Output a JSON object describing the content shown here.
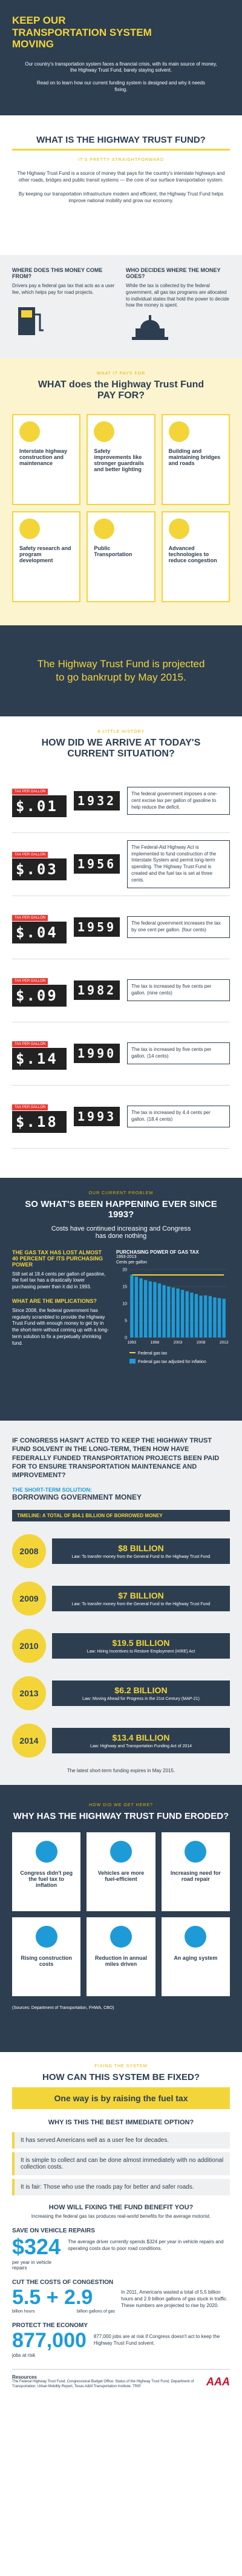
{
  "header": {
    "title": "KEEP OUR TRANSPORTATION SYSTEM MOVING",
    "paragraphs": [
      "Our country's transportation system faces a financial crisis, with its main source of money, the Highway Trust Fund, barely staying solvent.",
      "Read on to learn how our current funding system is designed and why it needs fixing."
    ]
  },
  "what_is": {
    "title": "WHAT IS THE HIGHWAY TRUST FUND?",
    "subtitle": "IT'S PRETTY STRAIGHTFORWARD",
    "paragraphs": [
      "The Highway Trust Fund is a source of money that pays for the country's interstate highways and other roads, bridges and public transit systems — the core of our surface transportation system.",
      "By keeping our transportation infrastructure modern and efficient, the Highway Trust Fund helps improve national mobility and grow our economy."
    ]
  },
  "where_who": [
    {
      "title": "WHERE DOES THIS MONEY COME FROM?",
      "text": "Drivers pay a federal gas tax that acts as a user fee, which helps pay for road projects."
    },
    {
      "title": "WHO DECIDES WHERE THE MONEY GOES?",
      "text": "While the tax is collected by the federal government, all gas tax programs are allocated to individual states that hold the power to decide how the money is spent."
    }
  ],
  "pay_for": {
    "kicker": "WHAT IT PAYS FOR",
    "title": "WHAT does the Highway Trust Fund PAY FOR?",
    "items": [
      "Interstate highway construction and maintenance",
      "Safety improvements like stronger guardrails and better lighting",
      "Building and maintaining bridges and roads",
      "Safety research and program development",
      "Public Transportation",
      "Advanced technologies to reduce congestion"
    ]
  },
  "banner": "The Highway Trust Fund is projected to go bankrupt by May 2015.",
  "history": {
    "kicker": "A LITTLE HISTORY",
    "title": "HOW DID WE ARRIVE AT TODAY'S CURRENT SITUATION?",
    "entries": [
      {
        "label": "TAX PER GALLON",
        "tax": "$.01",
        "year": "1932",
        "text": "The federal government imposes a one-cent excise tax per gallon of gasoline to help reduce the deficit."
      },
      {
        "label": "TAX PER GALLON",
        "tax": "$.03",
        "year": "1956",
        "text": "The Federal-Aid Highway Act is implemented to fund construction of the Interstate System and permit long-term spending. The Highway Trust Fund is created and the fuel tax is set at three cents."
      },
      {
        "label": "TAX PER GALLON",
        "tax": "$.04",
        "year": "1959",
        "text": "The federal government increases the tax by one cent per gallon. (four cents)"
      },
      {
        "label": "TAX PER GALLON",
        "tax": "$.09",
        "year": "1982",
        "text": "The tax is increased by five cents per gallon. (nine cents)"
      },
      {
        "label": "TAX PER GALLON",
        "tax": "$.14",
        "year": "1990",
        "text": "The tax is increased by five cents per gallon. (14 cents)"
      },
      {
        "label": "TAX PER GALLON",
        "tax": "$.18",
        "year": "1993",
        "text": "The tax is increased by 4.4 cents per gallon. (18.4 cents)"
      }
    ]
  },
  "since_1993": {
    "kicker": "OUR CURRENT PROBLEM",
    "title": "SO WHAT'S BEEN HAPPENING EVER SINCE 1993?",
    "subtitle": "Costs have continued increasing and Congress has done nothing",
    "lost": "THE GAS TAX HAS LOST ALMOST 40 PERCENT OF ITS PURCHASING POWER",
    "lost_text": "Still set at 18.4 cents per gallon of gasoline, the fuel tax has a drastically lower purchasing power than it did in 1993.",
    "implications_title": "WHAT ARE THE IMPLICATIONS?",
    "implications_text": "Since 2008, the federal government has regularly scrambled to provide the Highway Trust Fund with enough money to get by in the short-term without coming up with a long-term solution to fix a perpetually shrinking fund.",
    "chart": {
      "type": "bar",
      "title": "PURCHASING POWER OF GAS TAX",
      "subtitle": "1993-2013",
      "y_label": "Cents per gallon",
      "categories": [
        "1993",
        null,
        null,
        null,
        null,
        "1998",
        null,
        null,
        null,
        null,
        "2003",
        null,
        null,
        null,
        null,
        "2008",
        null,
        null,
        null,
        null,
        "2013"
      ],
      "ylim": [
        0,
        20
      ],
      "yticks": [
        0,
        5,
        10,
        15,
        20
      ],
      "series": [
        {
          "name": "Federal gas tax",
          "type": "line",
          "color": "#f3d53a",
          "values": [
            18.4,
            18.4,
            18.4,
            18.4,
            18.4,
            18.4,
            18.4,
            18.4,
            18.4,
            18.4,
            18.4,
            18.4,
            18.4,
            18.4,
            18.4,
            18.4,
            18.4,
            18.4,
            18.4,
            18.4,
            18.4
          ]
        },
        {
          "name": "Federal gas tax adjusted for inflation",
          "type": "bar",
          "color": "#1e9bd7",
          "values": [
            18.4,
            17.9,
            17.4,
            16.9,
            16.5,
            16.3,
            15.9,
            15.4,
            15.0,
            14.7,
            14.4,
            14.0,
            13.6,
            13.2,
            12.8,
            12.3,
            12.4,
            12.2,
            11.8,
            11.6,
            11.4
          ]
        }
      ]
    }
  },
  "congress": {
    "title": "IF CONGRESS HASN'T ACTED TO KEEP THE HIGHWAY TRUST FUND SOLVENT IN THE LONG-TERM, THEN HOW HAVE FEDERALLY FUNDED TRANSPORTATION PROJECTS BEEN PAID FOR TO ENSURE TRANSPORTATION MAINTENANCE AND IMPROVEMENT?",
    "solution_kicker": "THE SHORT-TERM SOLUTION:",
    "solution": "BORROWING GOVERNMENT MONEY",
    "timeline_title": "TIMELINE: A TOTAL OF $54.1 BILLION OF BORROWED MONEY",
    "entries": [
      {
        "year": "2008",
        "amount": "$8 BILLION",
        "text": "Law: To transfer money from the General Fund to the Highway Trust Fund"
      },
      {
        "year": "2009",
        "amount": "$7 BILLION",
        "text": "Law: To transfer money from the General Fund to the Highway Trust Fund"
      },
      {
        "year": "2010",
        "amount": "$19.5 BILLION",
        "text": "Law: Hiring Incentives to Restore Employment (HIRE) Act"
      },
      {
        "year": "2013",
        "amount": "$6.2 BILLION",
        "text": "Law: Moving Ahead for Progress in the 21st Century (MAP-21)"
      },
      {
        "year": "2014",
        "amount": "$13.4 BILLION",
        "text": "Law: Highway and Transportation Funding Act of 2014"
      }
    ],
    "note": "The latest short-term funding expires in May 2015."
  },
  "eroded": {
    "kicker": "HOW DID WE GET HERE?",
    "title": "WHY HAS THE HIGHWAY TRUST FUND ERODED?",
    "items": [
      "Congress didn't peg the fuel tax to inflation",
      "Vehicles are more fuel-efficient",
      "Increasing need for road repair",
      "Rising construction costs",
      "Reduction in annual miles driven",
      "An aging system"
    ],
    "source": "(Sources: Department of Transportation, FHWA, CBO)"
  },
  "fix": {
    "kicker": "FIXING THE SYSTEM",
    "title": "HOW CAN THIS SYSTEM BE FIXED?",
    "option": "One way is by raising the fuel tax",
    "why_title": "WHY IS THIS THE BEST IMMEDIATE OPTION?",
    "reasons": [
      "It has served Americans well as a user fee for decades.",
      "It is simple to collect and can be done almost immediately with no additional collection costs.",
      "It is fair: Those who use the roads pay for better and safer roads."
    ],
    "benefit_title": "HOW WILL FIXING THE FUND BENEFIT YOU?",
    "benefit_sub": "Increasing the federal gas tax produces real-world benefits for the average motorist.",
    "repairs": {
      "title": "SAVE ON VEHICLE REPAIRS",
      "figure": "$324",
      "caption": "per year in vehicle repairs",
      "text": "The average driver currently spends $324 per year in vehicle repairs and operating costs due to poor road conditions."
    },
    "congestion": {
      "title": "CUT THE COSTS OF CONGESTION",
      "figure1": "5.5",
      "plus": "+",
      "figure2": "2.9",
      "caption1": "billion hours",
      "caption2": "billion gallons of gas",
      "text": "In 2011, Americans wasted a total of 5.5 billion hours and 2.9 billion gallons of gas stuck in traffic. These numbers are projected to rise by 2020."
    },
    "economy": {
      "title": "PROTECT THE ECONOMY",
      "figure": "877,000",
      "caption": "jobs at risk",
      "text": "877,000 jobs are at risk if Congress doesn't act to keep the Highway Trust Fund solvent."
    },
    "resources_title": "Resources",
    "resources_text": "The Federal Highway Trust Fund, Congressional Budget Office; Status of the Highway Trust Fund, Department of Transportation; Urban Mobility Report, Texas A&M Transportation Institute; TRIP.",
    "logo": "AAA"
  }
}
